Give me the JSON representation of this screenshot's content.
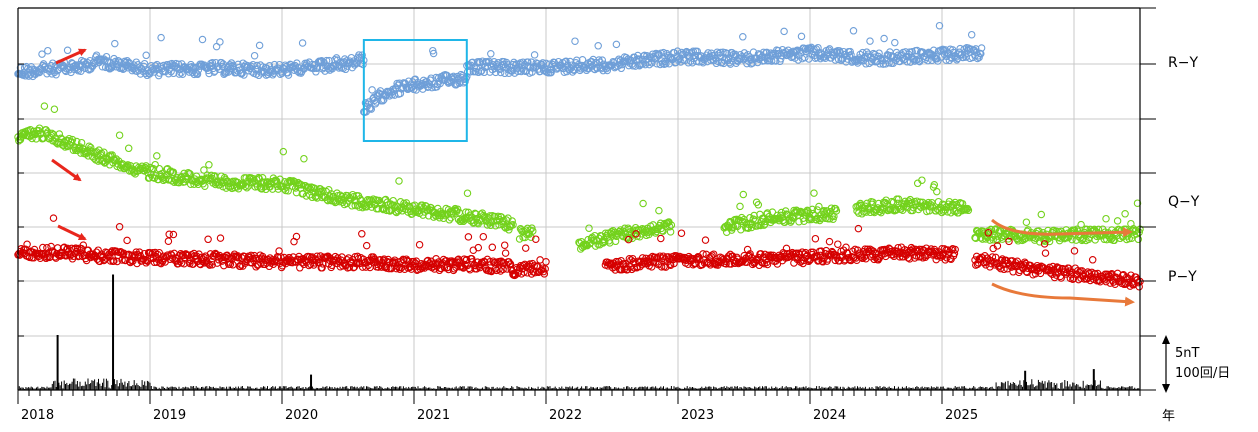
{
  "chart_data": {
    "type": "scatter",
    "title": "",
    "xlabel": "年",
    "x_ticks": [
      "2018",
      "2019",
      "2020",
      "2021",
      "2022",
      "2023",
      "2024",
      "2025"
    ],
    "x_range": [
      2018.0,
      2026.5
    ],
    "grid": true,
    "series": [
      {
        "name": "R−Y",
        "color": "#6f9fd8",
        "segments": [
          {
            "x": [
              2018.0,
              2018.5,
              2018.6,
              2019.0,
              2019.5,
              2020.0,
              2020.5,
              2020.62
            ],
            "level": [
              0.0,
              0.15,
              0.3,
              0.05,
              0.1,
              0.05,
              0.2,
              0.35
            ]
          },
          {
            "x": [
              2020.62,
              2020.8,
              2021.0,
              2021.3,
              2021.4
            ],
            "level": [
              -1.0,
              -0.5,
              -0.35,
              -0.2,
              -0.15
            ]
          },
          {
            "x": [
              2021.4,
              2021.8,
              2022.5,
              2023.0,
              2023.5,
              2024.0,
              2024.5,
              2025.0,
              2025.3
            ],
            "level": [
              0.15,
              0.1,
              0.2,
              0.4,
              0.35,
              0.5,
              0.35,
              0.45,
              0.5
            ]
          }
        ]
      },
      {
        "name": "Q−Y",
        "color": "#73d21c",
        "segments": [
          {
            "x": [
              2018.0,
              2018.2,
              2018.6,
              2019.0,
              2019.5,
              2020.0,
              2020.5,
              2021.0,
              2021.5,
              2021.75
            ],
            "level": [
              1.4,
              1.5,
              1.0,
              0.6,
              0.4,
              0.35,
              0.0,
              -0.2,
              -0.4,
              -0.55
            ]
          },
          {
            "x": [
              2021.8,
              2021.9
            ],
            "level": [
              -0.75,
              -0.75
            ]
          },
          {
            "x": [
              2022.25,
              2022.6,
              2022.95
            ],
            "level": [
              -1.0,
              -0.75,
              -0.6
            ]
          },
          {
            "x": [
              2023.35,
              2023.7,
              2024.2
            ],
            "level": [
              -0.6,
              -0.4,
              -0.3
            ]
          },
          {
            "x": [
              2024.35,
              2024.7,
              2025.2
            ],
            "level": [
              -0.2,
              -0.1,
              -0.2
            ]
          },
          {
            "x": [
              2025.25,
              2025.7,
              2026.5
            ],
            "level": [
              -0.75,
              -0.8,
              -0.75
            ]
          }
        ]
      },
      {
        "name": "P−Y",
        "color": "#d50000",
        "segments": [
          {
            "x": [
              2018.0,
              2018.3,
              2018.6,
              2019.0,
              2019.5,
              2020.0,
              2020.5,
              2021.0,
              2021.5,
              2021.75
            ],
            "level": [
              0.3,
              0.4,
              0.25,
              0.15,
              0.1,
              0.0,
              0.0,
              -0.1,
              -0.1,
              -0.25
            ]
          },
          {
            "x": [
              2021.75,
              2022.0
            ],
            "level": [
              -0.3,
              -0.3
            ]
          },
          {
            "x": [
              2022.45,
              2022.8,
              2023.2,
              2023.7,
              2024.2,
              2024.7,
              2025.1
            ],
            "level": [
              -0.2,
              0.0,
              0.1,
              0.1,
              0.25,
              0.35,
              0.3
            ]
          },
          {
            "x": [
              2025.25,
              2025.7,
              2026.2,
              2026.5
            ],
            "level": [
              0.1,
              -0.3,
              -0.6,
              -0.8
            ]
          }
        ]
      }
    ],
    "series_label_levels": {
      "R−Y": 62,
      "Q−Y": 201,
      "P−Y": 276
    },
    "earthquake_count_spikes": [
      {
        "x": 2018.3,
        "value": 100
      },
      {
        "x": 2018.72,
        "value": 210
      },
      {
        "x": 2020.22,
        "value": 28
      },
      {
        "x": 2025.63,
        "value": 35
      },
      {
        "x": 2026.15,
        "value": 38
      }
    ],
    "scale_labels": [
      "5nT",
      "100回/日"
    ],
    "annotations": {
      "box": {
        "x_range": [
          2020.62,
          2021.4
        ]
      },
      "red_arrows": 3,
      "orange_arrows": 2
    }
  }
}
